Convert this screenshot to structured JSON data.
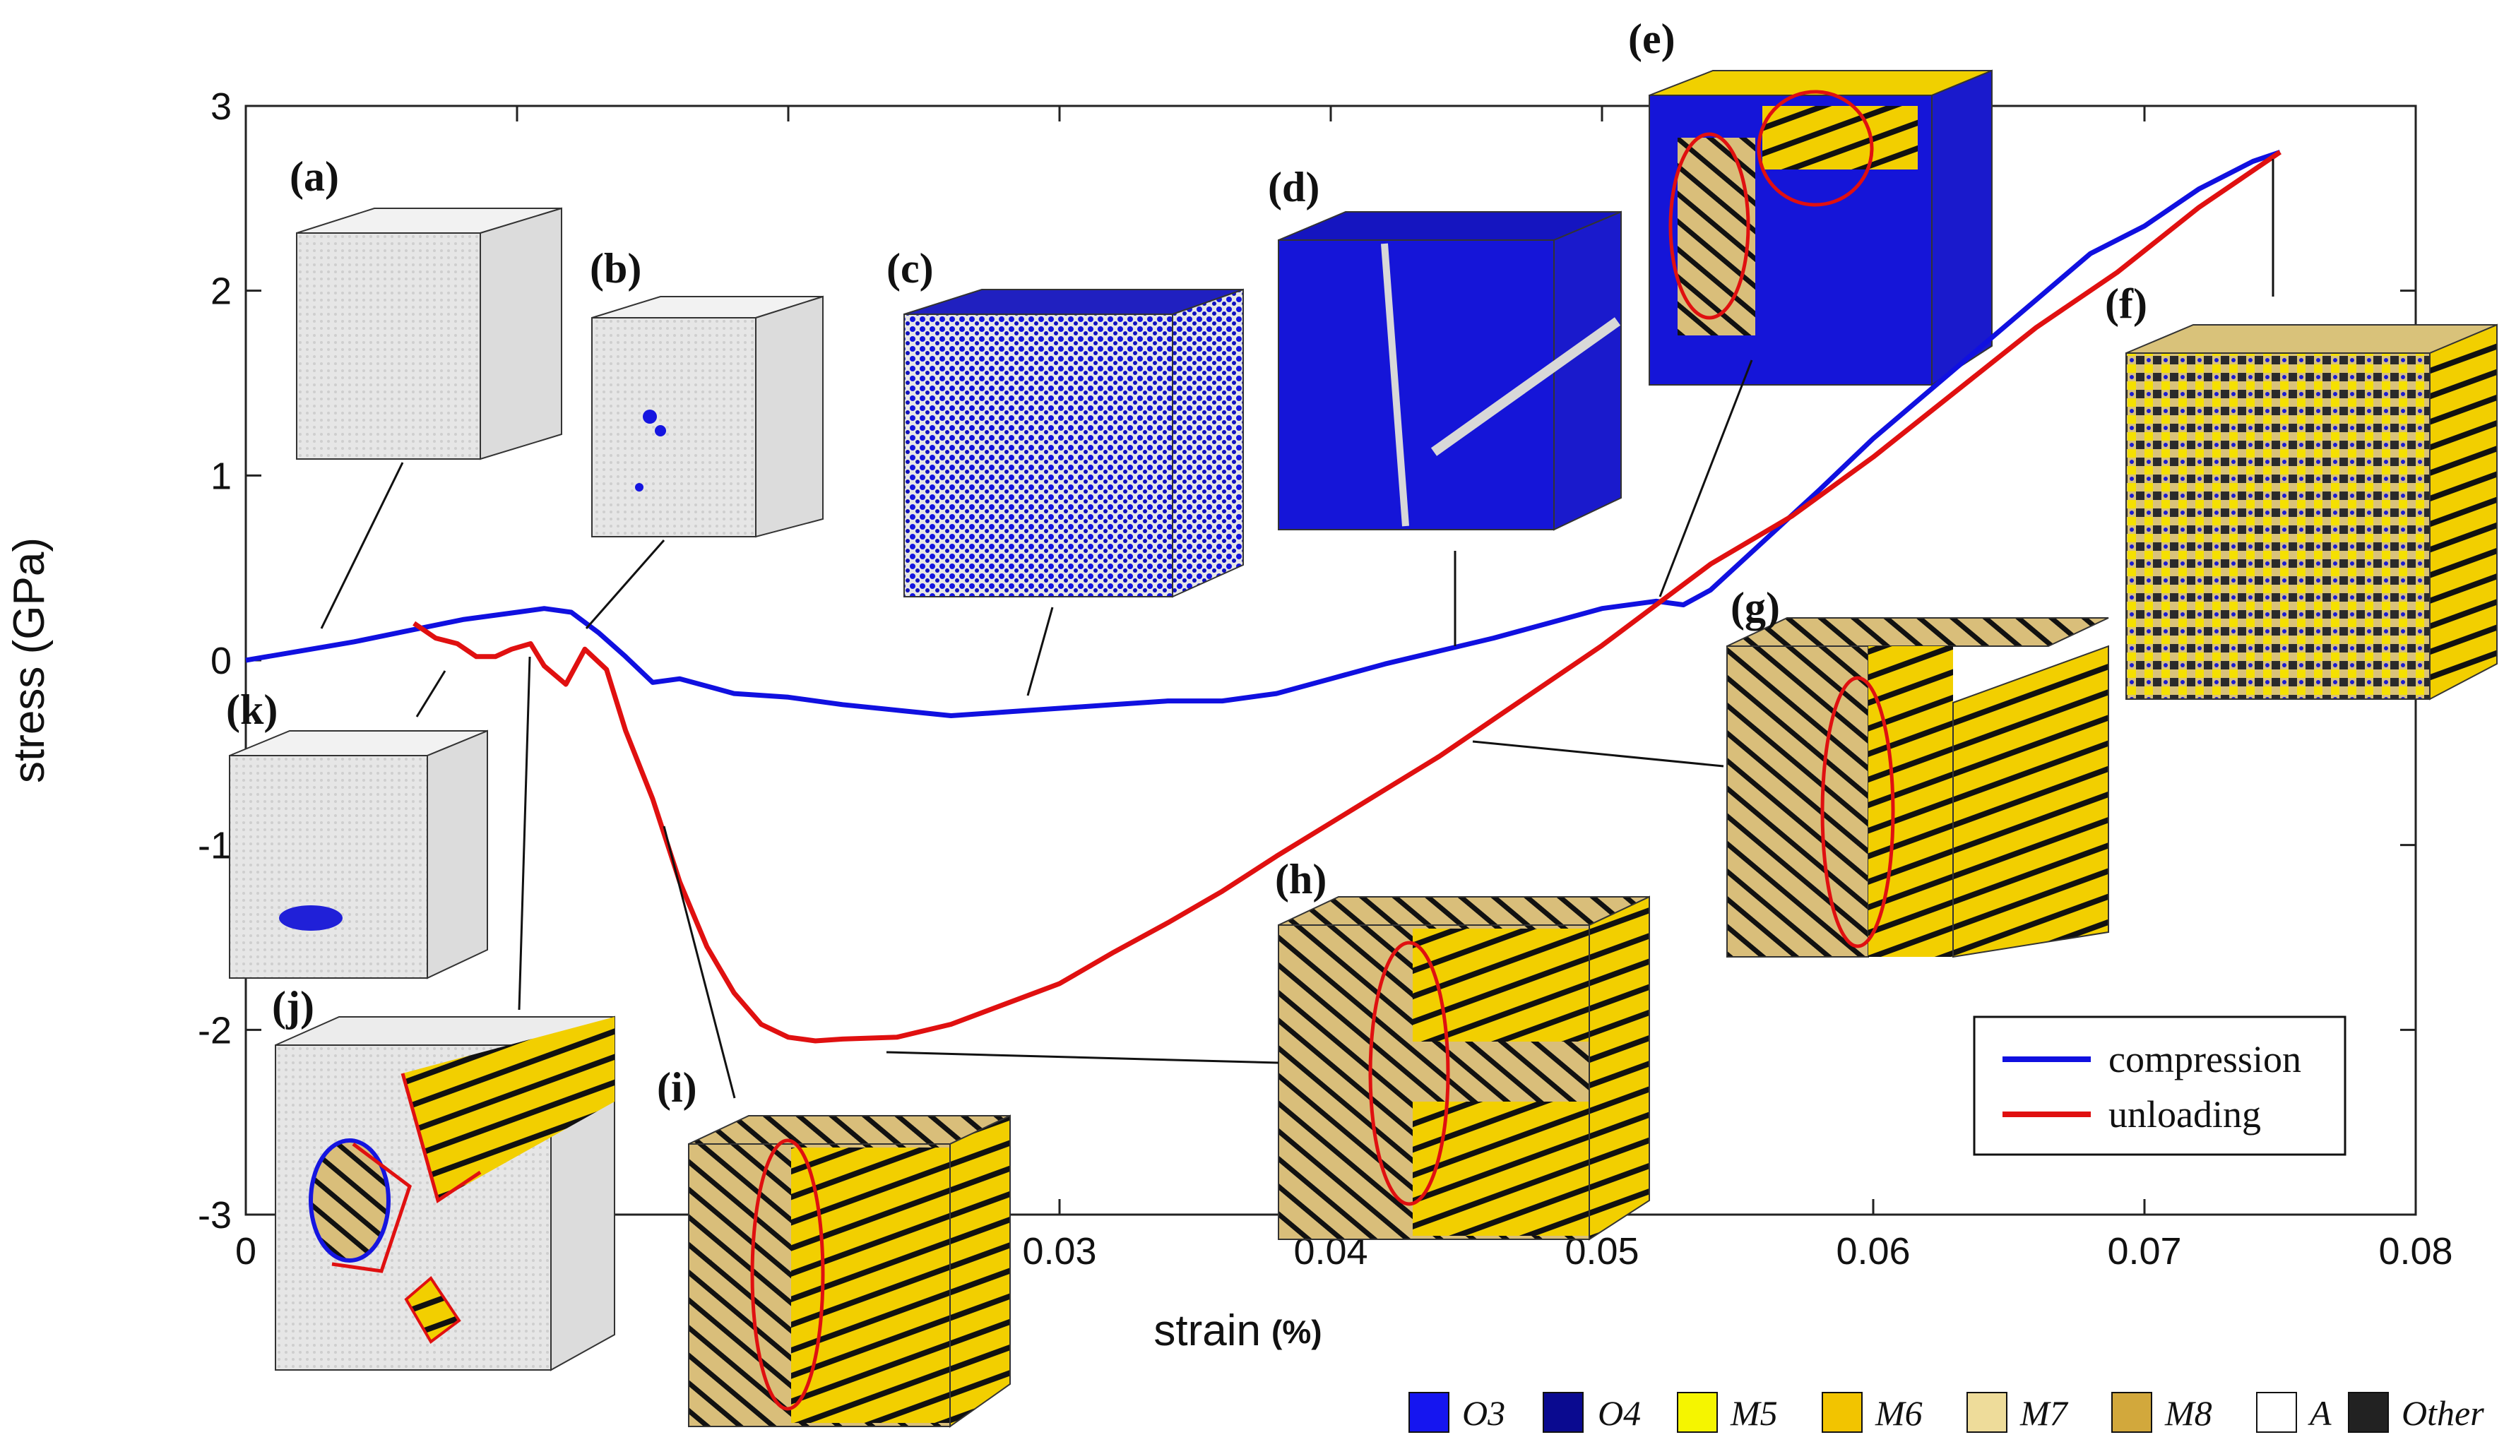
{
  "chart_data": {
    "type": "line",
    "xlabel": "strain",
    "xunit": "(%)",
    "ylabel": "stress (GPa)",
    "xlim": [
      0,
      0.08
    ],
    "ylim": [
      -3,
      3
    ],
    "xticks": [
      0,
      0.01,
      0.02,
      0.03,
      0.04,
      0.05,
      0.06,
      0.07,
      0.08
    ],
    "xtick_labels": [
      "0",
      "0.01",
      "0.02",
      "0.03",
      "0.04",
      "0.05",
      "0.06",
      "0.07",
      "0.08"
    ],
    "yticks": [
      -3,
      -2,
      -1,
      0,
      1,
      2,
      3
    ],
    "ytick_labels": [
      "-3",
      "-2",
      "-1",
      "0",
      "1",
      "2",
      "3"
    ],
    "grid": false,
    "legend_position": "lower-right",
    "series": [
      {
        "name": "compression",
        "color": "#1010e0",
        "x": [
          0,
          0.002,
          0.004,
          0.006,
          0.008,
          0.01,
          0.011,
          0.012,
          0.013,
          0.014,
          0.015,
          0.016,
          0.018,
          0.02,
          0.022,
          0.024,
          0.026,
          0.028,
          0.03,
          0.032,
          0.034,
          0.036,
          0.038,
          0.04,
          0.042,
          0.044,
          0.046,
          0.048,
          0.05,
          0.052,
          0.053,
          0.054,
          0.056,
          0.058,
          0.06,
          0.062,
          0.064,
          0.066,
          0.068,
          0.07,
          0.072,
          0.074,
          0.075
        ],
        "y": [
          0.0,
          0.05,
          0.1,
          0.16,
          0.22,
          0.26,
          0.28,
          0.26,
          0.15,
          0.02,
          -0.12,
          -0.1,
          -0.18,
          -0.2,
          -0.24,
          -0.27,
          -0.3,
          -0.28,
          -0.26,
          -0.24,
          -0.22,
          -0.22,
          -0.18,
          -0.1,
          -0.02,
          0.05,
          0.12,
          0.2,
          0.28,
          0.32,
          0.3,
          0.38,
          0.65,
          0.92,
          1.2,
          1.45,
          1.7,
          1.95,
          2.2,
          2.35,
          2.55,
          2.7,
          2.75
        ]
      },
      {
        "name": "unloading",
        "color": "#e01010",
        "x": [
          0.075,
          0.072,
          0.069,
          0.066,
          0.063,
          0.06,
          0.057,
          0.054,
          0.052,
          0.05,
          0.048,
          0.046,
          0.044,
          0.042,
          0.04,
          0.038,
          0.036,
          0.034,
          0.032,
          0.03,
          0.028,
          0.026,
          0.024,
          0.022,
          0.021,
          0.02,
          0.019,
          0.018,
          0.017,
          0.016,
          0.015,
          0.014,
          0.0133,
          0.0125,
          0.0118,
          0.011,
          0.0105,
          0.0098,
          0.0092,
          0.0085,
          0.0078,
          0.007,
          0.0062
        ],
        "y": [
          2.75,
          2.45,
          2.1,
          1.8,
          1.45,
          1.1,
          0.78,
          0.52,
          0.3,
          0.08,
          -0.12,
          -0.32,
          -0.52,
          -0.7,
          -0.88,
          -1.06,
          -1.25,
          -1.42,
          -1.58,
          -1.75,
          -1.86,
          -1.97,
          -2.04,
          -2.05,
          -2.06,
          -2.04,
          -1.97,
          -1.8,
          -1.55,
          -1.2,
          -0.75,
          -0.38,
          -0.05,
          0.06,
          -0.13,
          -0.03,
          0.09,
          0.06,
          0.02,
          0.02,
          0.09,
          0.12,
          0.2
        ]
      }
    ],
    "annotations": {
      "panel_labels": [
        "(a)",
        "(b)",
        "(c)",
        "(d)",
        "(e)",
        "(f)",
        "(g)",
        "(h)",
        "(i)",
        "(j)",
        "(k)"
      ]
    },
    "phase_legend": [
      {
        "label": "O3",
        "color": "#1515f0"
      },
      {
        "label": "O4",
        "color": "#0a0a90"
      },
      {
        "label": "M5",
        "color": "#f5f500"
      },
      {
        "label": "M6",
        "color": "#f2c400"
      },
      {
        "label": "M7",
        "color": "#eedc9a"
      },
      {
        "label": "M8",
        "color": "#d2a83c"
      },
      {
        "label": "A",
        "color": "#ffffff"
      },
      {
        "label": "Other",
        "color": "#222222"
      }
    ]
  }
}
